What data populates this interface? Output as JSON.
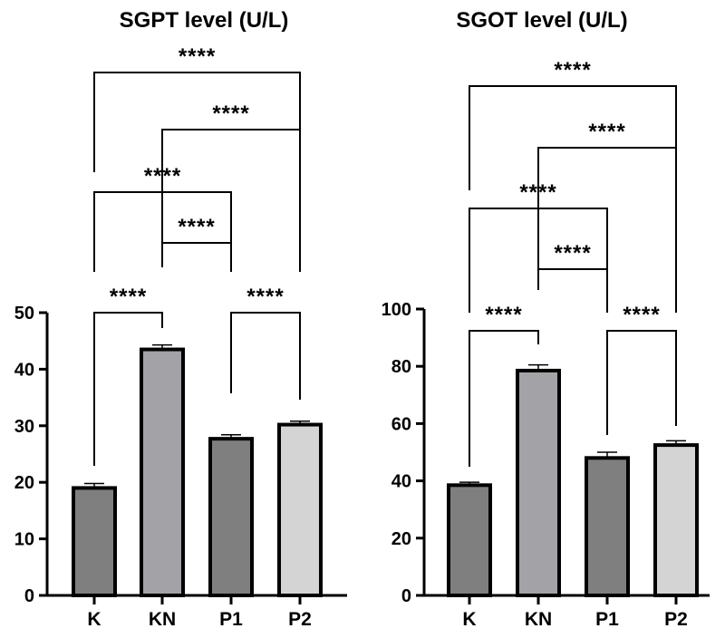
{
  "chart_data": [
    {
      "type": "bar",
      "title": "SGPT level (U/L)",
      "categories": [
        "K",
        "KN",
        "P1",
        "P2"
      ],
      "values": [
        19,
        43.5,
        27.7,
        30.2
      ],
      "error": [
        0.8,
        0.8,
        0.7,
        0.6
      ],
      "colors": [
        "#7f7f7f",
        "#a3a3a7",
        "#7f7f7f",
        "#d4d4d4"
      ],
      "ylim": [
        0,
        50
      ],
      "yticks": [
        0,
        10,
        20,
        30,
        40,
        50
      ],
      "xlabel": "",
      "ylabel": "",
      "grid": false,
      "comparisons": [
        {
          "pair": [
            "K",
            "KN"
          ],
          "label": "****"
        },
        {
          "pair": [
            "P1",
            "P2"
          ],
          "label": "****"
        },
        {
          "pair": [
            "KN",
            "P1"
          ],
          "label": "****"
        },
        {
          "pair": [
            "K",
            "P1"
          ],
          "label": "****"
        },
        {
          "pair": [
            "KN",
            "P2"
          ],
          "label": "****"
        },
        {
          "pair": [
            "K",
            "P2"
          ],
          "label": "****"
        }
      ]
    },
    {
      "type": "bar",
      "title": "SGOT level (U/L)",
      "categories": [
        "K",
        "KN",
        "P1",
        "P2"
      ],
      "values": [
        38.5,
        78.5,
        48,
        52.5
      ],
      "error": [
        1,
        2,
        2,
        1.5
      ],
      "colors": [
        "#7f7f7f",
        "#a3a3a7",
        "#7f7f7f",
        "#d4d4d4"
      ],
      "ylim": [
        0,
        100
      ],
      "yticks": [
        0,
        20,
        40,
        60,
        80,
        100
      ],
      "xlabel": "",
      "ylabel": "",
      "grid": false,
      "comparisons": [
        {
          "pair": [
            "K",
            "KN"
          ],
          "label": "****"
        },
        {
          "pair": [
            "P1",
            "P2"
          ],
          "label": "****"
        },
        {
          "pair": [
            "KN",
            "P1"
          ],
          "label": "****"
        },
        {
          "pair": [
            "K",
            "P1"
          ],
          "label": "****"
        },
        {
          "pair": [
            "KN",
            "P2"
          ],
          "label": "****"
        },
        {
          "pair": [
            "K",
            "P2"
          ],
          "label": "****"
        }
      ]
    }
  ]
}
